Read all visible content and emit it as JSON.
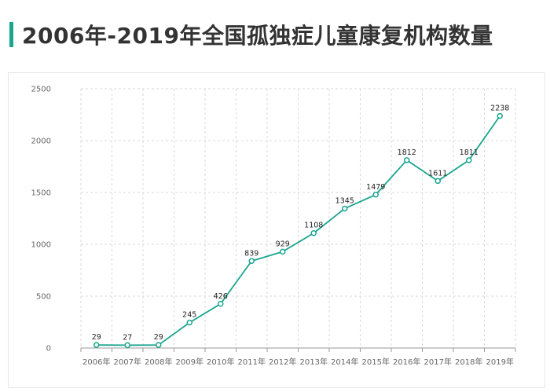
{
  "title": "2006年-2019年全国孤独症儿童康复机构数量",
  "colors": {
    "accent": "#1aa58f",
    "line": "#1aa58f",
    "grid": "#d9d9d9",
    "text": "#333333"
  },
  "chart_data": {
    "type": "line",
    "title": "2006年-2019年全国孤独症儿童康复机构数量",
    "xlabel": "",
    "ylabel": "",
    "categories": [
      "2006年",
      "2007年",
      "2008年",
      "2009年",
      "2010年",
      "2011年",
      "2012年",
      "2013年",
      "2014年",
      "2015年",
      "2016年",
      "2017年",
      "2018年",
      "2019年"
    ],
    "series": [
      {
        "values": [
          29,
          27,
          29,
          245,
          426,
          839,
          929,
          1108,
          1345,
          1479,
          1812,
          1611,
          1811,
          2238
        ]
      }
    ],
    "ylim": [
      0,
      2500
    ],
    "yticks": [
      0,
      500,
      1000,
      1500,
      2000,
      2500
    ],
    "grid": true,
    "legend": "none",
    "data_labels": true
  }
}
